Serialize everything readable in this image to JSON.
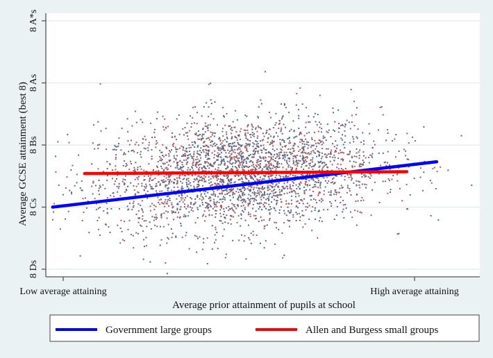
{
  "chart_data": {
    "type": "scatter",
    "title": "",
    "xlabel": "Average prior attainment of pupils at school",
    "ylabel": "Average GCSE attainment (best 8)",
    "x_ticks": [
      {
        "value": 0,
        "label": "Low average attaining"
      },
      {
        "value": 1,
        "label": "High average attaining"
      }
    ],
    "y_ticks": [
      {
        "value": 0,
        "label": "8 Ds"
      },
      {
        "value": 1,
        "label": "8 Cs"
      },
      {
        "value": 2,
        "label": "8 Bs"
      },
      {
        "value": 3,
        "label": "8 As"
      },
      {
        "value": 4,
        "label": "8 A*s"
      }
    ],
    "xlim": [
      -0.1,
      1.18
    ],
    "ylim": [
      -0.12,
      4.13
    ],
    "grid": true,
    "scatter": {
      "count": 3000,
      "x_mean": 0.5,
      "x_sd": 0.2,
      "y_mean": 1.55,
      "y_sd": 0.45,
      "colors": [
        "#4d6b8c",
        "#a35a5e"
      ]
    },
    "series": [
      {
        "name": "Government large groups",
        "color": "#0000ff",
        "x": [
          -0.03,
          1.063
        ],
        "y": [
          1.0,
          1.73
        ]
      },
      {
        "name": "Allen and Burgess small groups",
        "color": "#ff0000",
        "x": [
          0.061,
          0.978
        ],
        "y": [
          1.54,
          1.57
        ]
      }
    ],
    "legend": "bottom"
  }
}
